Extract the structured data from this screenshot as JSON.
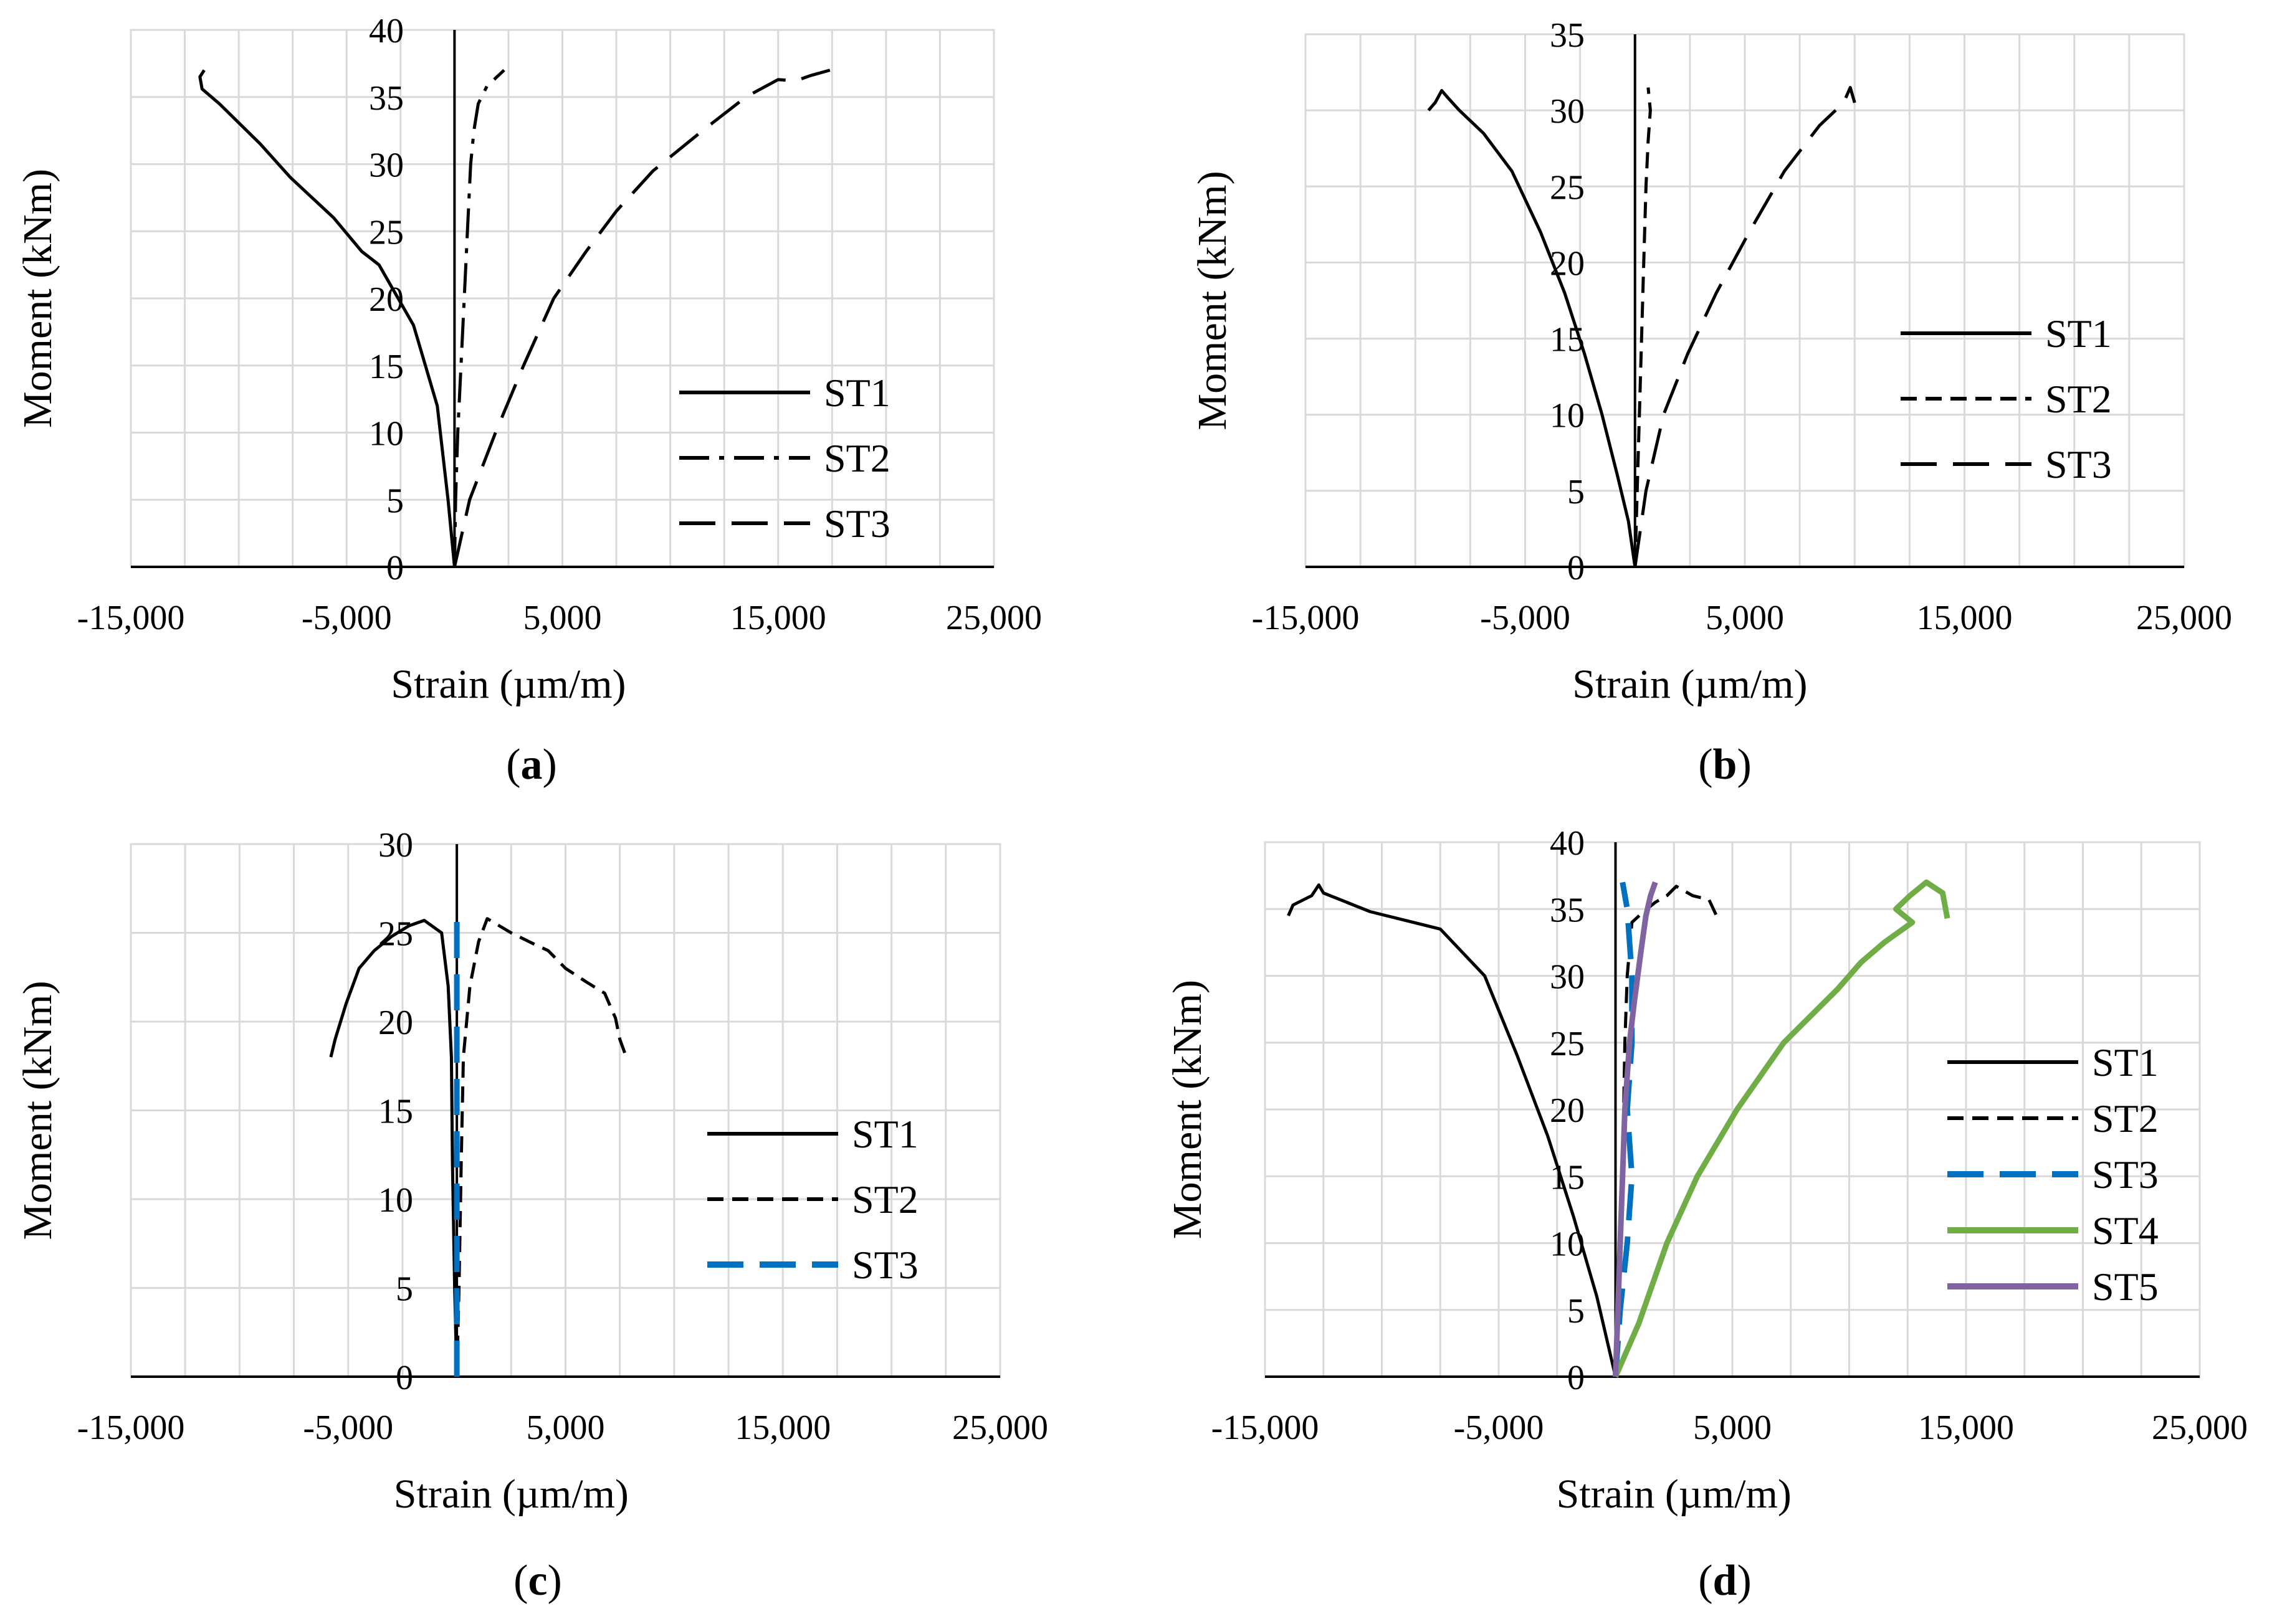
{
  "figure": {
    "panels": [
      {
        "caption_open": "(",
        "caption_letter": "a",
        "caption_close": ")"
      },
      {
        "caption_open": "(",
        "caption_letter": "b",
        "caption_close": ")"
      },
      {
        "caption_open": "(",
        "caption_letter": "c",
        "caption_close": ")"
      },
      {
        "caption_open": "(",
        "caption_letter": "d",
        "caption_close": ")"
      }
    ]
  },
  "chart_data": [
    {
      "type": "line",
      "xlabel": "Strain (µm/m)",
      "ylabel": "Moment (kNm)",
      "xlim": [
        -15000,
        25000
      ],
      "ylim": [
        0,
        40
      ],
      "xticks": [
        -15000,
        -5000,
        5000,
        15000,
        25000
      ],
      "xtick_labels": [
        "-15,000",
        "-5,000",
        "5,000",
        "15,000",
        "25,000"
      ],
      "yticks": [
        0,
        5,
        10,
        15,
        20,
        25,
        30,
        35,
        40
      ],
      "grid": false,
      "legend_position": "right",
      "series": [
        {
          "name": "ST1",
          "color": "#000000",
          "style": "solid",
          "points": [
            [
              0,
              0
            ],
            [
              -300,
              5
            ],
            [
              -800,
              12
            ],
            [
              -1900,
              18
            ],
            [
              -3500,
              22.5
            ],
            [
              -4300,
              23.5
            ],
            [
              -5600,
              26
            ],
            [
              -7600,
              29
            ],
            [
              -9000,
              31.5
            ],
            [
              -10900,
              34.5
            ],
            [
              -11700,
              35.6
            ],
            [
              -11800,
              36.5
            ],
            [
              -11600,
              37
            ]
          ]
        },
        {
          "name": "ST2",
          "color": "#000000",
          "style": "dashdot",
          "points": [
            [
              0,
              0
            ],
            [
              50,
              5
            ],
            [
              150,
              10
            ],
            [
              300,
              15
            ],
            [
              450,
              20
            ],
            [
              600,
              25
            ],
            [
              750,
              30
            ],
            [
              900,
              32.5
            ],
            [
              1100,
              34.5
            ],
            [
              1500,
              35.8
            ],
            [
              2300,
              37
            ]
          ]
        },
        {
          "name": "ST3",
          "color": "#000000",
          "style": "longdash",
          "points": [
            [
              0,
              0
            ],
            [
              700,
              5
            ],
            [
              1900,
              10
            ],
            [
              3200,
              15
            ],
            [
              4600,
              20
            ],
            [
              6100,
              23.5
            ],
            [
              7500,
              26.5
            ],
            [
              9200,
              29.5
            ],
            [
              11500,
              32.5
            ],
            [
              13500,
              35
            ],
            [
              15000,
              36.3
            ],
            [
              15800,
              36.2
            ],
            [
              16500,
              36.6
            ],
            [
              17400,
              37
            ]
          ]
        }
      ]
    },
    {
      "type": "line",
      "xlabel": "Strain (µm/m)",
      "ylabel": "Moment (kNm)",
      "xlim": [
        -15000,
        25000
      ],
      "ylim": [
        0,
        35
      ],
      "xticks": [
        -15000,
        -5000,
        5000,
        15000,
        25000
      ],
      "xtick_labels": [
        "-15,000",
        "-5,000",
        "5,000",
        "15,000",
        "25,000"
      ],
      "yticks": [
        0,
        5,
        10,
        15,
        20,
        25,
        30,
        35
      ],
      "grid": false,
      "legend_position": "right",
      "series": [
        {
          "name": "ST1",
          "color": "#000000",
          "style": "solid",
          "points": [
            [
              0,
              0
            ],
            [
              -300,
              3
            ],
            [
              -800,
              6
            ],
            [
              -1500,
              10
            ],
            [
              -2300,
              14
            ],
            [
              -3200,
              18
            ],
            [
              -4300,
              22
            ],
            [
              -5600,
              26
            ],
            [
              -6900,
              28.5
            ],
            [
              -8000,
              30
            ],
            [
              -8500,
              30.8
            ],
            [
              -8800,
              31.3
            ],
            [
              -9100,
              30.5
            ],
            [
              -9400,
              30
            ]
          ]
        },
        {
          "name": "ST2",
          "color": "#000000",
          "style": "dashed",
          "points": [
            [
              0,
              0
            ],
            [
              100,
              5
            ],
            [
              200,
              10
            ],
            [
              300,
              15
            ],
            [
              400,
              20
            ],
            [
              500,
              25
            ],
            [
              600,
              28
            ],
            [
              700,
              30
            ],
            [
              600,
              31.5
            ]
          ]
        },
        {
          "name": "ST3",
          "color": "#000000",
          "style": "longdash",
          "points": [
            [
              0,
              0
            ],
            [
              500,
              5
            ],
            [
              1300,
              10
            ],
            [
              2400,
              14
            ],
            [
              3700,
              18
            ],
            [
              5200,
              22
            ],
            [
              6800,
              26
            ],
            [
              8400,
              29
            ],
            [
              9500,
              30.5
            ],
            [
              9800,
              31.5
            ],
            [
              10000,
              30.5
            ]
          ]
        }
      ]
    },
    {
      "type": "line",
      "xlabel": "Strain (µm/m)",
      "ylabel": "Moment (kNm)",
      "xlim": [
        -15000,
        25000
      ],
      "ylim": [
        0,
        30
      ],
      "xticks": [
        -15000,
        -5000,
        5000,
        15000,
        25000
      ],
      "xtick_labels": [
        "-15,000",
        "-5,000",
        "5,000",
        "15,000",
        "25,000"
      ],
      "yticks": [
        0,
        5,
        10,
        15,
        20,
        25,
        30
      ],
      "grid": false,
      "legend_position": "right",
      "series": [
        {
          "name": "ST1",
          "color": "#000000",
          "style": "solid",
          "points": [
            [
              0,
              0
            ],
            [
              -100,
              5
            ],
            [
              -200,
              12
            ],
            [
              -250,
              18
            ],
            [
              -400,
              22
            ],
            [
              -700,
              25
            ],
            [
              -1500,
              25.7
            ],
            [
              -2200,
              25.4
            ],
            [
              -3000,
              24.8
            ],
            [
              -3800,
              24
            ],
            [
              -4500,
              23
            ],
            [
              -5100,
              21
            ],
            [
              -5600,
              19
            ],
            [
              -5800,
              18
            ]
          ]
        },
        {
          "name": "ST2",
          "color": "#000000",
          "style": "dashed",
          "points": [
            [
              0,
              0
            ],
            [
              100,
              5
            ],
            [
              200,
              12
            ],
            [
              300,
              18
            ],
            [
              600,
              22
            ],
            [
              1000,
              24.5
            ],
            [
              1400,
              25.8
            ],
            [
              2500,
              25
            ],
            [
              3500,
              24.4
            ],
            [
              4200,
              24
            ],
            [
              5000,
              23
            ],
            [
              6000,
              22.2
            ],
            [
              6800,
              21.6
            ],
            [
              7300,
              20.2
            ],
            [
              7500,
              19
            ],
            [
              7800,
              18
            ]
          ]
        },
        {
          "name": "ST3",
          "color": "#0070C0",
          "style": "longdash",
          "points": [
            [
              0,
              0
            ],
            [
              0,
              5
            ],
            [
              0,
              10
            ],
            [
              0,
              15
            ],
            [
              0,
              20
            ],
            [
              0,
              26
            ]
          ]
        }
      ]
    },
    {
      "type": "line",
      "xlabel": "Strain (µm/m)",
      "ylabel": "Moment (kNm)",
      "xlim": [
        -15000,
        25000
      ],
      "ylim": [
        0,
        40
      ],
      "xticks": [
        -15000,
        -5000,
        5000,
        15000,
        25000
      ],
      "xtick_labels": [
        "-15,000",
        "-5,000",
        "5,000",
        "15,000",
        "25,000"
      ],
      "yticks": [
        0,
        5,
        10,
        15,
        20,
        25,
        30,
        35,
        40
      ],
      "grid": false,
      "legend_position": "right",
      "series": [
        {
          "name": "ST1",
          "color": "#000000",
          "style": "solid",
          "points": [
            [
              0,
              0
            ],
            [
              -800,
              6
            ],
            [
              -1800,
              12
            ],
            [
              -2900,
              18
            ],
            [
              -4200,
              24
            ],
            [
              -5600,
              30
            ],
            [
              -7500,
              33.5
            ],
            [
              -10500,
              34.8
            ],
            [
              -11500,
              35.5
            ],
            [
              -12500,
              36.2
            ],
            [
              -12700,
              36.8
            ],
            [
              -13000,
              36
            ],
            [
              -13800,
              35.3
            ],
            [
              -14000,
              34.5
            ]
          ]
        },
        {
          "name": "ST2",
          "color": "#000000",
          "style": "dashed",
          "points": [
            [
              0,
              0
            ],
            [
              100,
              5
            ],
            [
              200,
              10
            ],
            [
              300,
              15
            ],
            [
              350,
              20
            ],
            [
              400,
              25
            ],
            [
              500,
              30
            ],
            [
              700,
              34
            ],
            [
              1200,
              34.8
            ],
            [
              1700,
              35.5
            ],
            [
              2200,
              36
            ],
            [
              2600,
              36.7
            ],
            [
              3300,
              36
            ],
            [
              4000,
              35.7
            ],
            [
              4400,
              34.2
            ]
          ]
        },
        {
          "name": "ST3",
          "color": "#0070C0",
          "style": "longdash",
          "points": [
            [
              0,
              0
            ],
            [
              200,
              5
            ],
            [
              500,
              10
            ],
            [
              700,
              15
            ],
            [
              500,
              20
            ],
            [
              700,
              25
            ],
            [
              700,
              30
            ],
            [
              500,
              35
            ],
            [
              300,
              37
            ]
          ]
        },
        {
          "name": "ST4",
          "color": "#70AD47",
          "style": "solid",
          "points": [
            [
              0,
              0
            ],
            [
              1000,
              4
            ],
            [
              2200,
              10
            ],
            [
              3500,
              15
            ],
            [
              5200,
              20
            ],
            [
              7200,
              25
            ],
            [
              9500,
              29
            ],
            [
              10500,
              31
            ],
            [
              11500,
              32.5
            ],
            [
              12700,
              34
            ],
            [
              12000,
              35
            ],
            [
              12600,
              36
            ],
            [
              13300,
              37
            ],
            [
              14000,
              36.2
            ],
            [
              14200,
              34.3
            ]
          ]
        },
        {
          "name": "ST5",
          "color": "#8064A2",
          "style": "solid",
          "points": [
            [
              0,
              0
            ],
            [
              100,
              5
            ],
            [
              200,
              10
            ],
            [
              300,
              15
            ],
            [
              400,
              20
            ],
            [
              600,
              25
            ],
            [
              800,
              28
            ],
            [
              1100,
              32
            ],
            [
              1300,
              34.5
            ],
            [
              1500,
              36
            ],
            [
              1700,
              37
            ]
          ]
        }
      ]
    }
  ]
}
